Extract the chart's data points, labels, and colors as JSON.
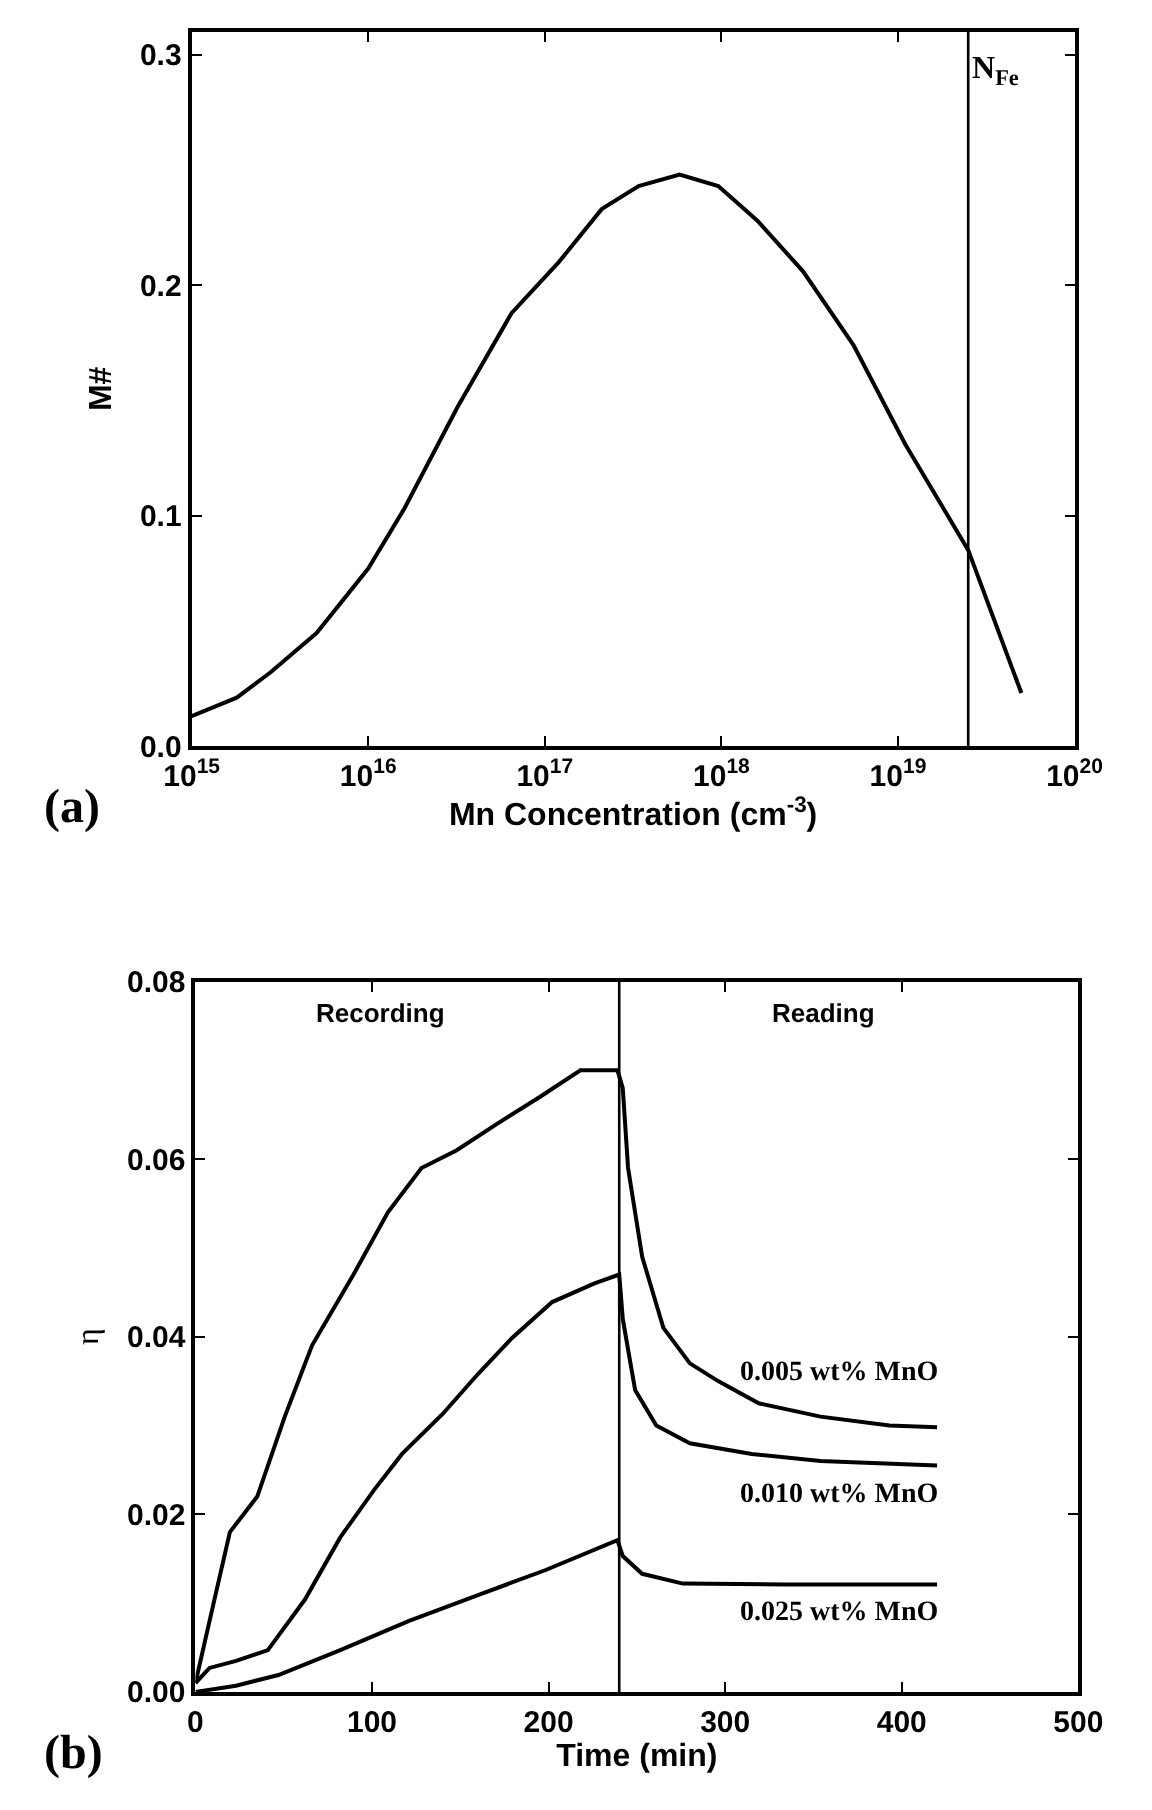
{
  "chart_data": [
    {
      "type": "line",
      "xlabel": "Mn Concentration (cm$^{-3}$)",
      "ylabel": "M#",
      "log": "x",
      "x": [
        1000000000000000.0,
        1800000000000000.0,
        2800000000000000.0,
        5100000000000000.0,
        1e+16,
        1.6e+16,
        3.2e+16,
        6.5e+16,
        1.2e+17,
        2.1e+17,
        3.4e+17,
        5.8e+17,
        9.6e+17,
        1.6e+18,
        2.9e+18,
        5.6e+18,
        1.1e+19,
        2.5e+19,
        5e+19
      ],
      "values": [
        0.013,
        0.021,
        0.032,
        0.049,
        0.077,
        0.103,
        0.147,
        0.188,
        0.21,
        0.233,
        0.243,
        0.248,
        0.243,
        0.228,
        0.206,
        0.174,
        0.131,
        0.085,
        0.023
      ],
      "color": "#000000",
      "xlim": [
        1000000000000000.0,
        1e+20
      ],
      "ylim": [
        0,
        0.31
      ],
      "xticks": [
        {
          "value": 1000000000000000.0,
          "label": "10$^{15}$"
        },
        {
          "value": 1e+16,
          "label": "10$^{16}$"
        },
        {
          "value": 1e+17,
          "label": "10$^{17}$"
        },
        {
          "value": 1e+18,
          "label": "10$^{18}$"
        },
        {
          "value": 1e+19,
          "label": "10$^{19}$"
        },
        {
          "value": 1e+20,
          "label": "10$^{20}$"
        }
      ],
      "yticks": [
        {
          "value": 0,
          "label": "0.0"
        },
        0.1,
        0.2,
        0.3
      ],
      "ref_lines": [
        {
          "axis": "x",
          "value": 2.5e+19,
          "label": "N$_{Fe}$"
        }
      ],
      "annotations": [
        "(a)"
      ]
    },
    {
      "type": "line",
      "xlabel": "Time (min)",
      "ylabel": "η",
      "series": [
        {
          "name": "0.005 wt% MnO",
          "color": "#000000",
          "x": [
            0,
            8,
            19.5,
            35,
            50.6,
            66,
            89.5,
            109,
            128,
            148,
            171,
            195,
            218,
            239,
            242,
            245,
            253,
            265,
            280,
            296,
            319,
            354,
            393,
            420
          ],
          "values": [
            0.001,
            0.008,
            0.018,
            0.022,
            0.031,
            0.039,
            0.047,
            0.054,
            0.059,
            0.061,
            0.064,
            0.067,
            0.07,
            0.07,
            0.068,
            0.059,
            0.049,
            0.041,
            0.037,
            0.035,
            0.0325,
            0.031,
            0.03,
            0.0298
          ]
        },
        {
          "name": "0.010 wt% MnO",
          "color": "#000000",
          "x": [
            0,
            8,
            23,
            41,
            62,
            82,
            101,
            117,
            140,
            160,
            179,
            202,
            226,
            240,
            242,
            249,
            261,
            280,
            315,
            354,
            420
          ],
          "values": [
            0.001,
            0.0027,
            0.0035,
            0.0047,
            0.0104,
            0.0174,
            0.0227,
            0.0268,
            0.0313,
            0.0358,
            0.0398,
            0.0439,
            0.046,
            0.047,
            0.042,
            0.034,
            0.03,
            0.028,
            0.0268,
            0.026,
            0.0255
          ]
        },
        {
          "name": "0.025 wt% MnO",
          "color": "#000000",
          "x": [
            0,
            23,
            47,
            82,
            121,
            160,
            198,
            239,
            242,
            253,
            276,
            335,
            420
          ],
          "values": [
            0.0,
            0.0007,
            0.0019,
            0.0047,
            0.008,
            0.0109,
            0.0137,
            0.0171,
            0.0153,
            0.0133,
            0.0122,
            0.0121,
            0.0121
          ]
        }
      ],
      "xlim": [
        0,
        500
      ],
      "ylim": [
        0,
        0.08
      ],
      "xticks": [
        0,
        100,
        200,
        300,
        400,
        500
      ],
      "yticks": [
        {
          "value": 0,
          "label": "0.00"
        },
        0.02,
        0.04,
        0.06,
        0.08
      ],
      "ref_lines": [
        {
          "axis": "x",
          "value": 240
        }
      ],
      "annotations": [
        "Recording",
        "Reading",
        "(b)"
      ]
    }
  ]
}
